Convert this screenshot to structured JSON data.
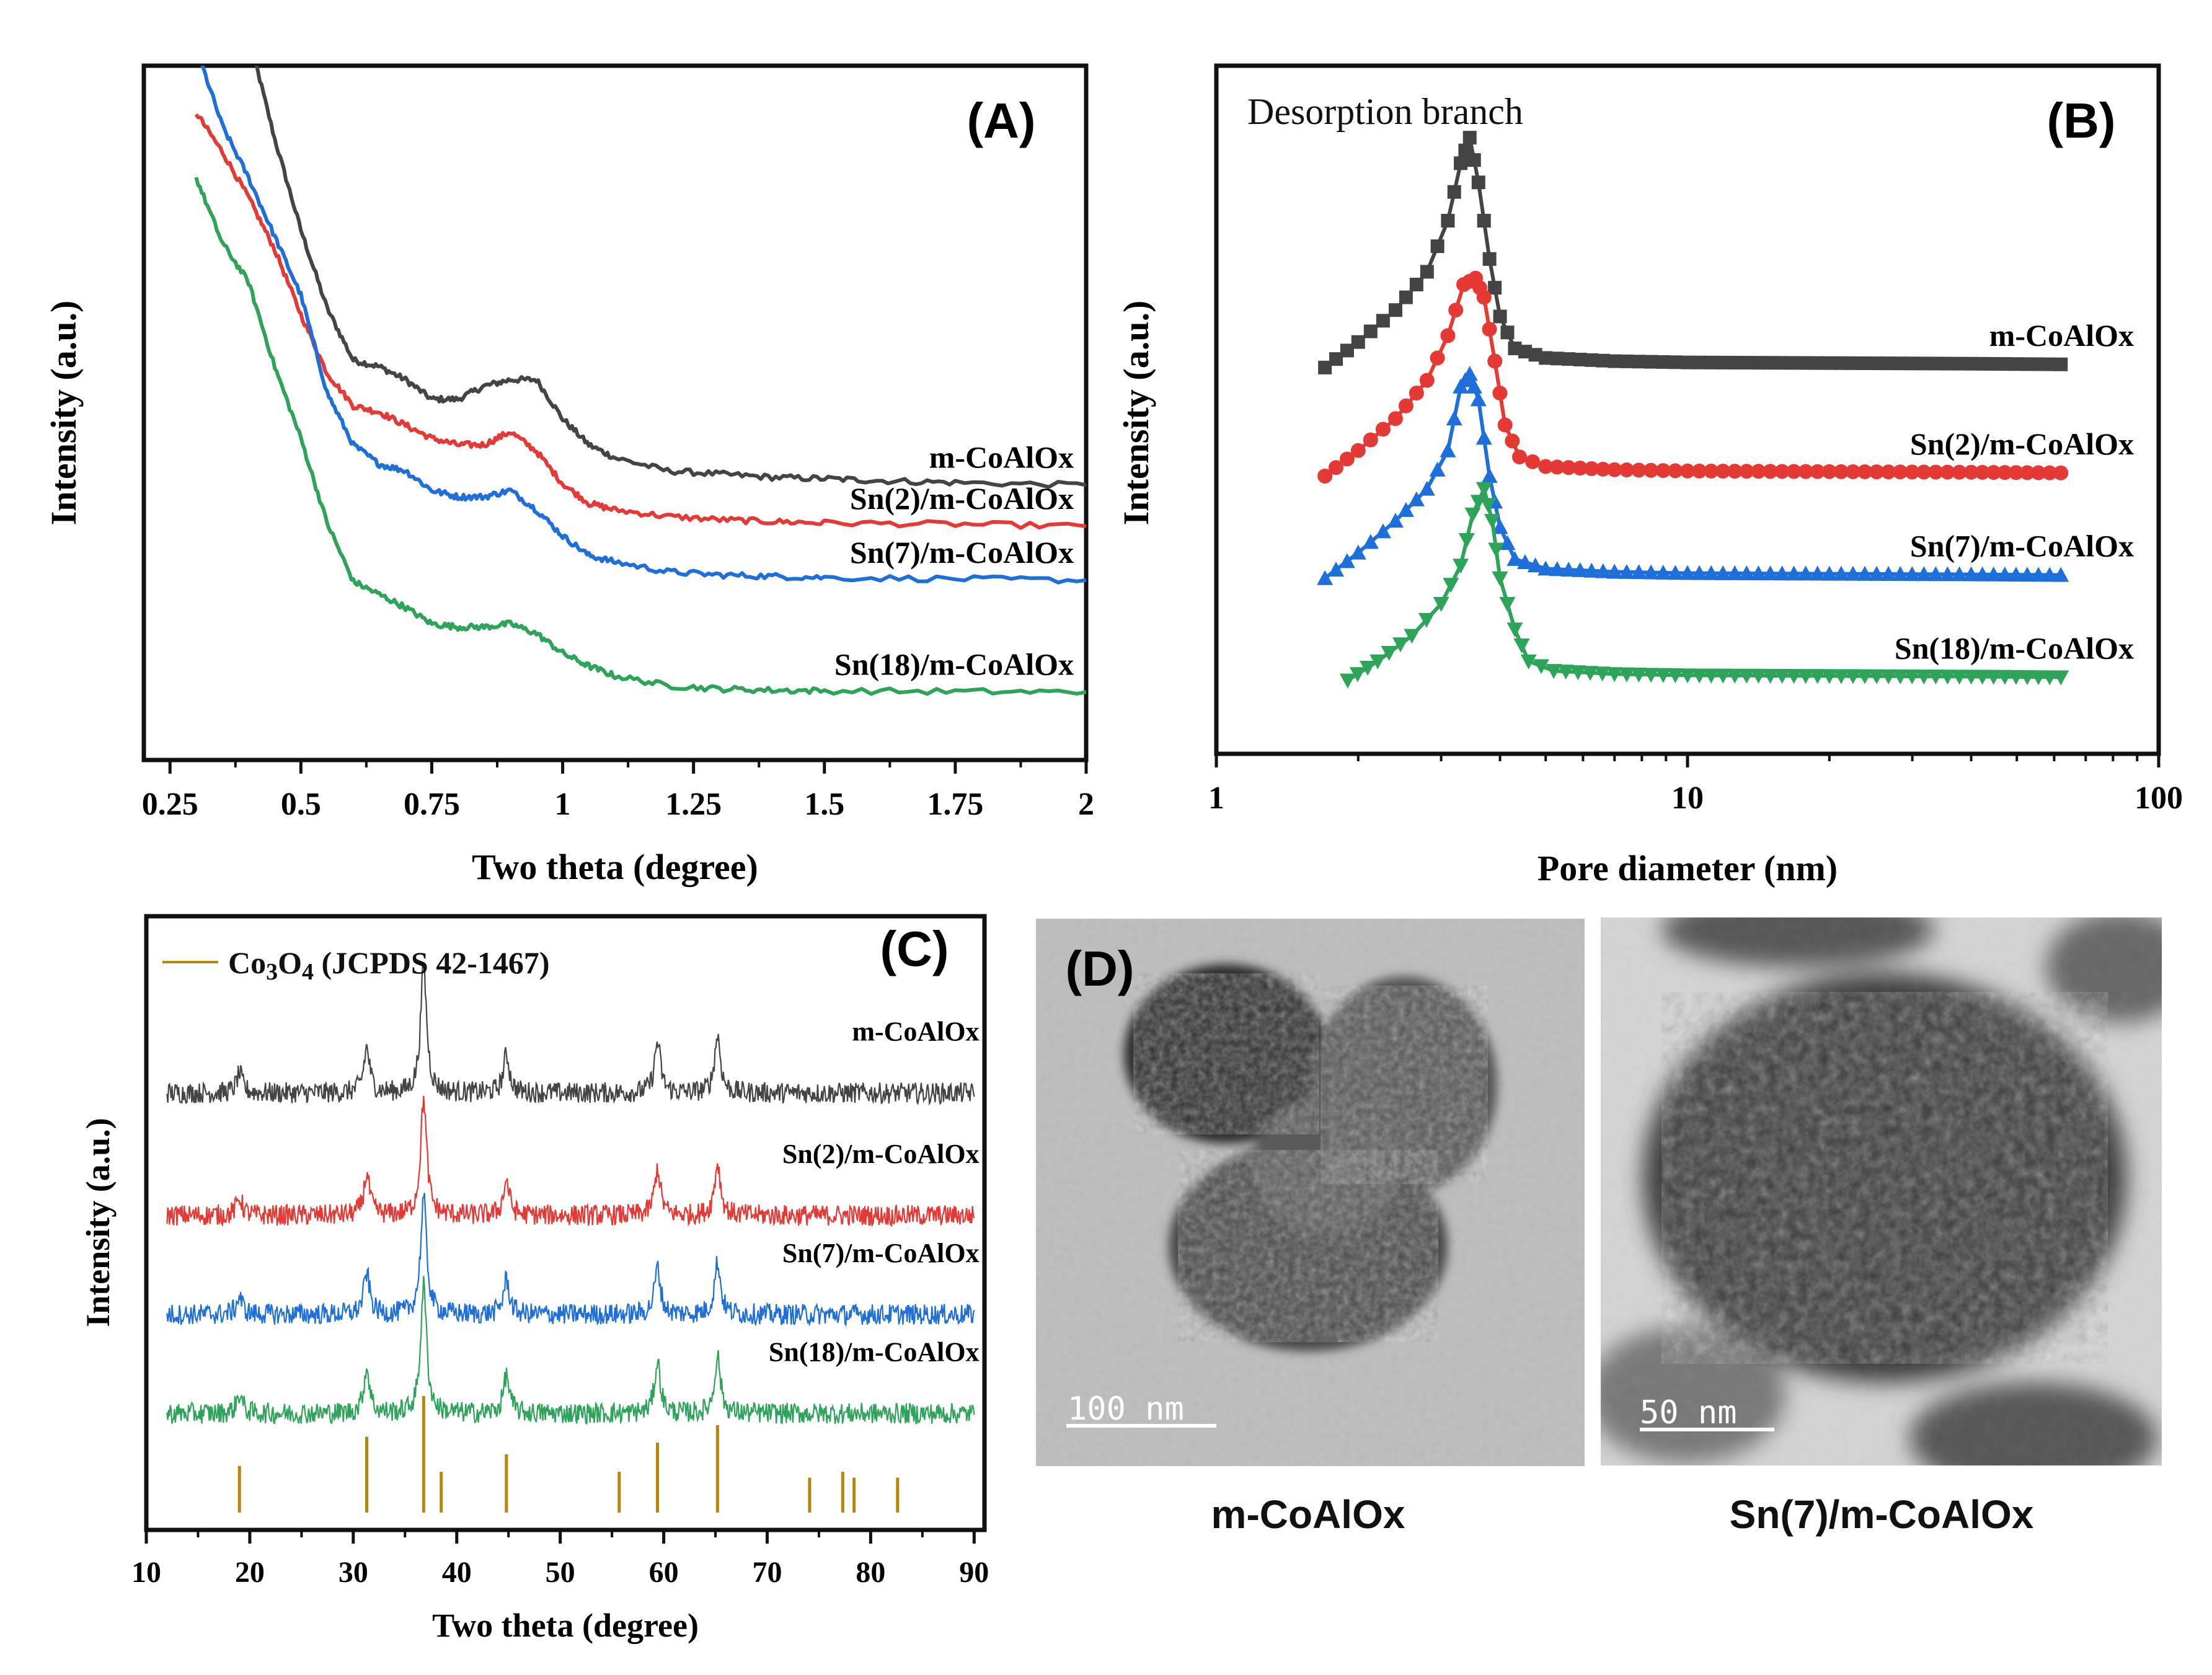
{
  "chart_data": [
    {
      "id": "A",
      "type": "line",
      "panel_label": "(A)",
      "xlabel": "Two theta (degree)",
      "ylabel": "Intensity (a.u.)",
      "xlim": [
        0.2,
        2.0
      ],
      "xticks": [
        "0.25",
        "0.5",
        "0.75",
        "1",
        "1.25",
        "1.5",
        "1.75",
        "2"
      ],
      "xtick_values": [
        0.25,
        0.5,
        0.75,
        1,
        1.25,
        1.5,
        1.75,
        2
      ],
      "ylim": [
        0,
        100
      ],
      "series": [
        {
          "name": "m-CoAlOx",
          "color": "#444444",
          "x": [
            0.4,
            0.45,
            0.5,
            0.55,
            0.6,
            0.65,
            0.7,
            0.75,
            0.8,
            0.85,
            0.9,
            0.95,
            1.0,
            1.05,
            1.1,
            1.2,
            1.3,
            1.4,
            1.5,
            1.6,
            1.75,
            2.0
          ],
          "y": [
            108,
            92,
            78,
            66,
            58,
            57,
            55,
            52,
            52,
            54,
            55,
            55,
            49,
            45,
            43,
            41,
            40.5,
            40,
            39.8,
            39.5,
            39.2,
            38.8
          ]
        },
        {
          "name": "Sn(2)/m-CoAlOx",
          "color": "#e53935",
          "x": [
            0.3,
            0.35,
            0.4,
            0.45,
            0.5,
            0.55,
            0.6,
            0.65,
            0.7,
            0.75,
            0.8,
            0.85,
            0.9,
            0.95,
            1.0,
            1.05,
            1.1,
            1.2,
            1.3,
            1.4,
            1.5,
            1.75,
            2.0
          ],
          "y": [
            96,
            90,
            83,
            75,
            65,
            56,
            51,
            50,
            48,
            46,
            45,
            45,
            47,
            44,
            39,
            36,
            35,
            34,
            33.5,
            33.2,
            33,
            32.8,
            32.5
          ]
        },
        {
          "name": "Sn(7)/m-CoAlOx",
          "color": "#1e6fd9",
          "x": [
            0.3,
            0.35,
            0.4,
            0.45,
            0.5,
            0.55,
            0.6,
            0.65,
            0.7,
            0.75,
            0.8,
            0.85,
            0.9,
            0.95,
            1.0,
            1.05,
            1.1,
            1.2,
            1.3,
            1.4,
            1.5,
            1.75,
            2.0
          ],
          "y": [
            106,
            94,
            86,
            77,
            68,
            53,
            45,
            42,
            41,
            38,
            37,
            37,
            38,
            35,
            31,
            28,
            27,
            25.5,
            25,
            24.8,
            24.6,
            24.4,
            24.2
          ]
        },
        {
          "name": "Sn(18)/m-CoAlOx",
          "color": "#2ea35a",
          "x": [
            0.3,
            0.35,
            0.4,
            0.45,
            0.5,
            0.55,
            0.6,
            0.65,
            0.7,
            0.75,
            0.8,
            0.85,
            0.9,
            0.95,
            1.0,
            1.05,
            1.1,
            1.2,
            1.3,
            1.4,
            1.5,
            1.75,
            2.0
          ],
          "y": [
            86,
            76,
            70,
            57,
            46,
            33,
            24,
            22,
            20,
            17.5,
            17,
            17,
            17.5,
            16,
            13,
            11,
            9.5,
            8,
            7.5,
            7.3,
            7.2,
            7.1,
            7
          ]
        }
      ]
    },
    {
      "id": "B",
      "type": "line",
      "scale": "log-x",
      "panel_label": "(B)",
      "annotation": "Desorption branch",
      "xlabel": "Pore diameter (nm)",
      "ylabel": "Intensity (a.u.)",
      "xlim": [
        1,
        100
      ],
      "xticks": [
        "1",
        "10",
        "100"
      ],
      "xtick_values": [
        1,
        10,
        100
      ],
      "ylim": [
        0,
        100
      ],
      "series": [
        {
          "name": "m-CoAlOx",
          "color": "#444444",
          "marker": "square",
          "x": [
            1.7,
            2.0,
            2.4,
            2.8,
            3.1,
            3.3,
            3.45,
            3.6,
            3.8,
            4.0,
            4.3,
            5.0,
            7.0,
            10,
            20,
            40,
            62
          ],
          "y": [
            57,
            61,
            66,
            72,
            80,
            89,
            93,
            86,
            74,
            65,
            60,
            58.5,
            58,
            57.8,
            57.7,
            57.6,
            57.5
          ]
        },
        {
          "name": "Sn(2)/m-CoAlOx",
          "color": "#e53935",
          "marker": "circle",
          "x": [
            1.7,
            2.0,
            2.4,
            2.8,
            3.1,
            3.35,
            3.55,
            3.7,
            3.9,
            4.1,
            4.4,
            5.0,
            7.0,
            10,
            20,
            40,
            62
          ],
          "y": [
            40,
            44,
            49,
            55,
            62,
            70,
            71,
            68,
            58,
            48,
            43,
            41.5,
            41,
            40.8,
            40.7,
            40.6,
            40.5
          ]
        },
        {
          "name": "Sn(7)/m-CoAlOx",
          "color": "#1e6fd9",
          "marker": "triangle-up",
          "x": [
            1.7,
            2.0,
            2.4,
            2.8,
            3.1,
            3.3,
            3.45,
            3.6,
            3.8,
            4.0,
            4.3,
            5.0,
            7.0,
            10,
            20,
            40,
            62
          ],
          "y": [
            24,
            28,
            33,
            38,
            44,
            54,
            56,
            52,
            40,
            32,
            27,
            25.5,
            25,
            24.8,
            24.7,
            24.6,
            24.5
          ]
        },
        {
          "name": "Sn(18)/m-CoAlOx",
          "color": "#2ea35a",
          "marker": "triangle-down",
          "x": [
            1.9,
            2.2,
            2.6,
            3.0,
            3.3,
            3.5,
            3.7,
            3.85,
            4.0,
            4.3,
            4.6,
            5.2,
            7.0,
            10,
            20,
            40,
            62
          ],
          "y": [
            8,
            11,
            15,
            20,
            26,
            34,
            38,
            33,
            24,
            16,
            11,
            9.5,
            9,
            8.8,
            8.7,
            8.6,
            8.5
          ]
        }
      ]
    },
    {
      "id": "C",
      "type": "line",
      "panel_label": "(C)",
      "xlabel": "Two theta (degree)",
      "ylabel": "Intensity (a.u.)",
      "xlim": [
        10,
        91
      ],
      "xticks": [
        "10",
        "20",
        "30",
        "40",
        "50",
        "60",
        "70",
        "80",
        "90"
      ],
      "xtick_values": [
        10,
        20,
        30,
        40,
        50,
        60,
        70,
        80,
        90
      ],
      "ylim": [
        0,
        100
      ],
      "reference": {
        "label_prefix": "Co",
        "label_sub1": "3",
        "label_mid": "O",
        "label_sub2": "4",
        "label_suffix": " (JCPDS 42-1467)",
        "color": "#b8860b",
        "positions": [
          19.0,
          31.3,
          36.8,
          38.5,
          44.8,
          55.7,
          59.4,
          65.2,
          74.1,
          77.3,
          78.4,
          82.6
        ],
        "heights": [
          8,
          13,
          20,
          7,
          10,
          7,
          12,
          15,
          6,
          7,
          6,
          6
        ]
      },
      "peaks": [
        19.0,
        31.3,
        36.8,
        44.8,
        59.4,
        65.2
      ],
      "peak_heights": [
        0.15,
        0.35,
        1.0,
        0.3,
        0.4,
        0.45
      ],
      "series": [
        {
          "name": "m-CoAlOx",
          "color": "#444444",
          "baseline": 72,
          "scale": 22,
          "noise": 1.8
        },
        {
          "name": "Sn(2)/m-CoAlOx",
          "color": "#e53935",
          "baseline": 51,
          "scale": 20,
          "noise": 1.8
        },
        {
          "name": "Sn(7)/m-CoAlOx",
          "color": "#1e6fd9",
          "baseline": 34,
          "scale": 20,
          "noise": 1.8
        },
        {
          "name": "Sn(18)/m-CoAlOx",
          "color": "#2ea35a",
          "baseline": 17,
          "scale": 22,
          "noise": 1.8
        }
      ]
    }
  ],
  "panel_d": {
    "panel_label": "(D)",
    "images": [
      {
        "caption": "m-CoAlOx",
        "scale_bar": "100 nm"
      },
      {
        "caption": "Sn(7)/m-CoAlOx",
        "scale_bar": "50 nm"
      }
    ]
  }
}
